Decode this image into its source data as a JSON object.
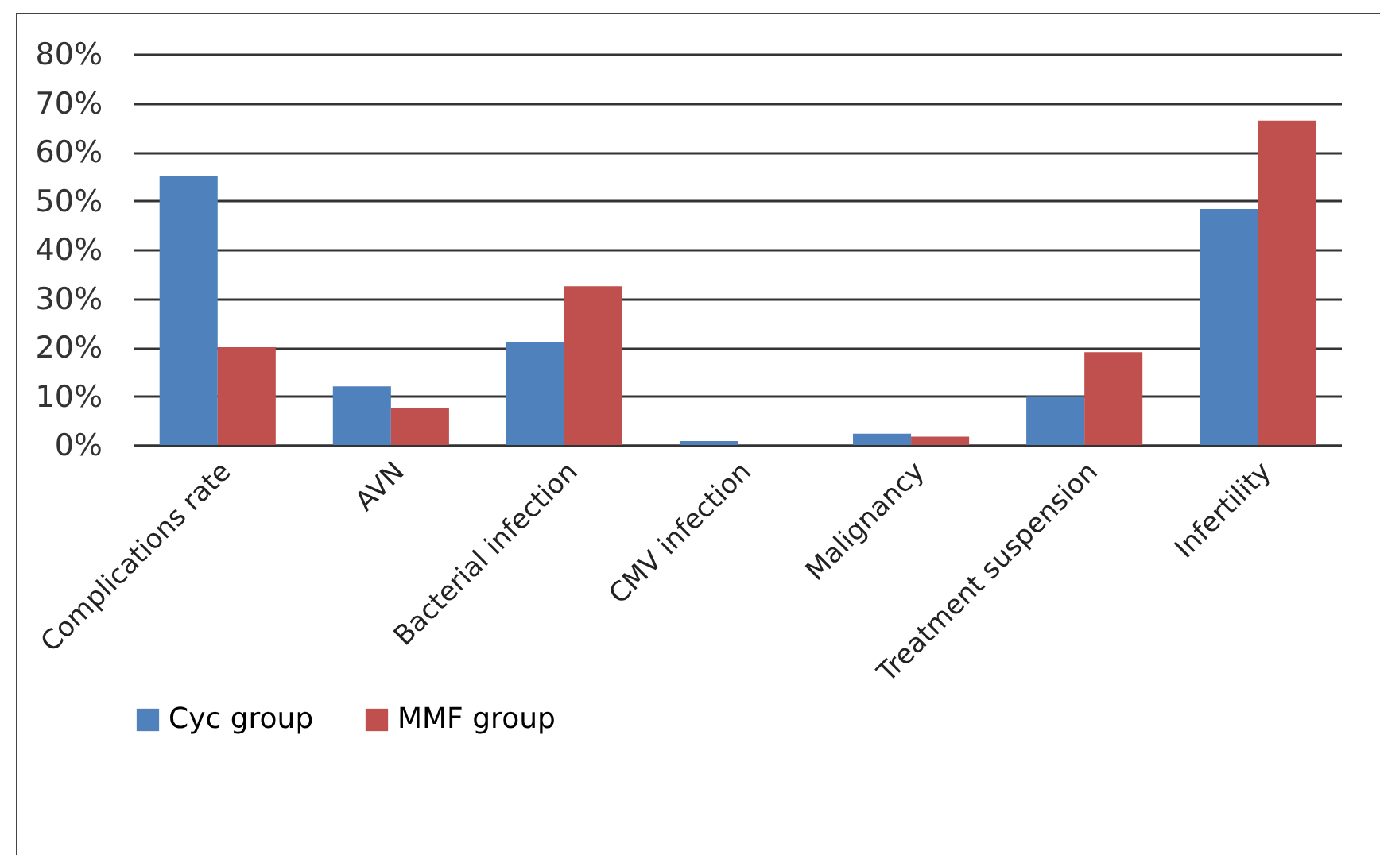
{
  "chart_data": {
    "type": "bar",
    "categories": [
      "Complications rate",
      "AVN",
      "Bacterial infection",
      "CMV infection",
      "Malignancy",
      "Treatment suspension",
      "Infertility"
    ],
    "series": [
      {
        "name": "Cyc group",
        "color": "#4f81bd",
        "values": [
          55,
          12,
          21,
          0.8,
          2.3,
          10,
          48.3
        ]
      },
      {
        "name": "MMF group",
        "color": "#c0504d",
        "values": [
          20,
          7.5,
          32.5,
          0,
          1.7,
          19,
          66.4
        ]
      }
    ],
    "ylim": [
      0,
      80
    ],
    "yticks": [
      {
        "value": 0,
        "label": "0%"
      },
      {
        "value": 10,
        "label": "10%"
      },
      {
        "value": 20,
        "label": "20%"
      },
      {
        "value": 30,
        "label": "30%"
      },
      {
        "value": 40,
        "label": "40%"
      },
      {
        "value": 50,
        "label": "50%"
      },
      {
        "value": 60,
        "label": "60%"
      },
      {
        "value": 70,
        "label": "70%"
      },
      {
        "value": 80,
        "label": "80%"
      }
    ],
    "grid": "y",
    "legend": "bottom"
  }
}
